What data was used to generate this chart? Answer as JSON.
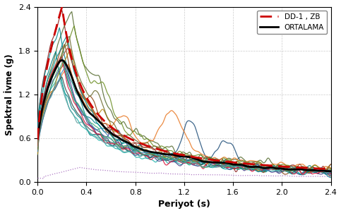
{
  "xlabel": "Periyot (s)",
  "ylabel": "Spektral İvme (g)",
  "xlim": [
    0.0,
    2.4
  ],
  "ylim": [
    0.0,
    2.4
  ],
  "xticks": [
    0.0,
    0.4,
    0.8,
    1.2,
    1.6,
    2.0,
    2.4
  ],
  "yticks": [
    0.0,
    0.6,
    1.2,
    1.8,
    2.4
  ],
  "legend_dd1": "DD-1 , ZB",
  "legend_avg": "ORTALAMA",
  "dd1_color": "#cc0000",
  "avg_color": "#000000"
}
